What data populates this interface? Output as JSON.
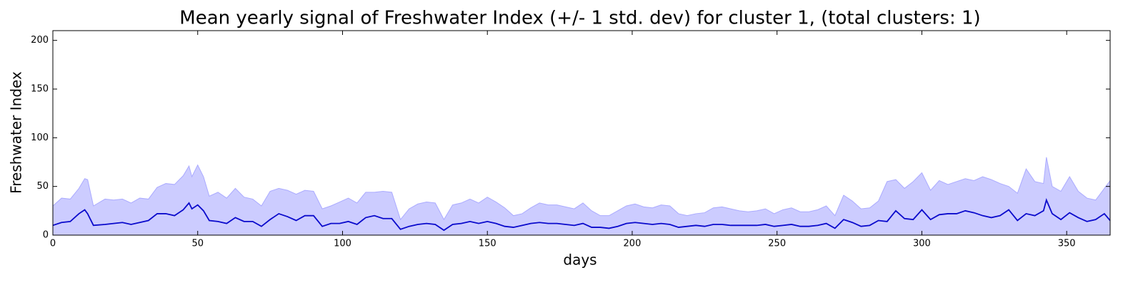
{
  "chart_data": {
    "type": "line",
    "title": "Mean yearly signal of Freshwater Index (+/- 1 std. dev) for cluster 1, (total clusters: 1)",
    "xlabel": "days",
    "ylabel": "Freshwater Index",
    "xlim": [
      0,
      365
    ],
    "ylim": [
      0,
      210
    ],
    "xticks": [
      0,
      50,
      100,
      150,
      200,
      250,
      300,
      350
    ],
    "yticks": [
      0,
      50,
      100,
      150,
      200
    ],
    "color": "#0a0acc",
    "band_color": "#ccccff",
    "band_edge_color": "#aaaaff",
    "x": [
      0,
      3,
      6,
      9,
      11,
      12,
      14,
      18,
      21,
      24,
      27,
      30,
      33,
      36,
      39,
      42,
      45,
      47,
      48,
      50,
      52,
      54,
      57,
      60,
      63,
      66,
      69,
      72,
      75,
      78,
      81,
      84,
      87,
      90,
      93,
      96,
      99,
      102,
      105,
      108,
      111,
      114,
      117,
      120,
      123,
      126,
      129,
      132,
      135,
      138,
      141,
      144,
      147,
      150,
      153,
      156,
      159,
      162,
      165,
      168,
      171,
      174,
      177,
      180,
      183,
      186,
      189,
      192,
      195,
      198,
      201,
      204,
      207,
      210,
      213,
      216,
      219,
      222,
      225,
      228,
      231,
      234,
      237,
      240,
      243,
      246,
      249,
      252,
      255,
      258,
      261,
      264,
      267,
      270,
      273,
      276,
      279,
      282,
      285,
      288,
      291,
      294,
      297,
      300,
      303,
      306,
      309,
      312,
      315,
      318,
      321,
      324,
      327,
      330,
      333,
      336,
      339,
      342,
      343,
      345,
      348,
      351,
      354,
      357,
      360,
      363,
      365
    ],
    "values": [
      10,
      13,
      14,
      22,
      26,
      22,
      10,
      11,
      12,
      13,
      11,
      13,
      15,
      22,
      22,
      20,
      26,
      33,
      27,
      31,
      25,
      15,
      14,
      12,
      18,
      14,
      14,
      9,
      16,
      22,
      19,
      15,
      20,
      20,
      9,
      12,
      12,
      14,
      11,
      18,
      20,
      17,
      17,
      6,
      9,
      11,
      12,
      11,
      5,
      11,
      12,
      14,
      12,
      14,
      12,
      9,
      8,
      10,
      12,
      13,
      12,
      12,
      11,
      10,
      12,
      8,
      8,
      7,
      9,
      12,
      13,
      12,
      11,
      12,
      11,
      8,
      9,
      10,
      9,
      11,
      11,
      10,
      10,
      10,
      10,
      11,
      9,
      10,
      11,
      9,
      9,
      10,
      12,
      7,
      16,
      13,
      9,
      10,
      15,
      14,
      25,
      17,
      16,
      26,
      16,
      21,
      22,
      22,
      25,
      23,
      20,
      18,
      20,
      26,
      15,
      22,
      20,
      25,
      36,
      22,
      16,
      23,
      18,
      14,
      16,
      22,
      15
    ],
    "upper": [
      30,
      38,
      37,
      48,
      58,
      57,
      30,
      37,
      36,
      37,
      33,
      38,
      37,
      49,
      53,
      52,
      61,
      71,
      60,
      72,
      60,
      40,
      44,
      38,
      48,
      39,
      37,
      30,
      45,
      48,
      46,
      42,
      46,
      45,
      27,
      30,
      34,
      38,
      33,
      44,
      44,
      45,
      44,
      16,
      27,
      32,
      34,
      33,
      16,
      31,
      33,
      37,
      33,
      39,
      34,
      28,
      20,
      22,
      28,
      33,
      31,
      31,
      29,
      27,
      33,
      25,
      20,
      20,
      25,
      30,
      32,
      29,
      28,
      31,
      30,
      22,
      20,
      22,
      23,
      28,
      29,
      27,
      25,
      24,
      25,
      27,
      22,
      26,
      28,
      24,
      24,
      26,
      30,
      20,
      41,
      35,
      27,
      28,
      35,
      55,
      57,
      48,
      55,
      64,
      46,
      56,
      52,
      55,
      58,
      56,
      60,
      57,
      53,
      50,
      43,
      68,
      55,
      53,
      80,
      50,
      45,
      60,
      45,
      38,
      36,
      48,
      56
    ]
  }
}
